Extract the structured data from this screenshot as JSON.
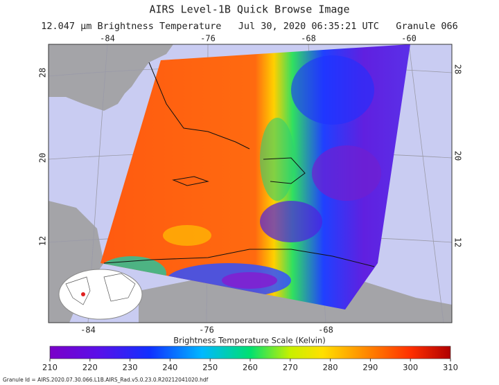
{
  "title": "AIRS Level-1B Quick Browse Image",
  "subtitle": "12.047 μm Brightness Temperature   Jul 30, 2020 06:35:21 UTC   Granule 066",
  "map": {
    "top_lon_labels": [
      -84,
      -76,
      -68,
      -60
    ],
    "bottom_lon_labels": [
      -84,
      -76,
      -68
    ],
    "left_lat_labels": [
      28,
      20,
      12
    ],
    "right_lat_labels": [
      28,
      20,
      12
    ]
  },
  "colorbar": {
    "title": "Brightness Temperature Scale (Kelvin)",
    "range": [
      210,
      310
    ],
    "ticks": [
      210,
      220,
      230,
      240,
      250,
      260,
      270,
      280,
      290,
      300,
      310
    ]
  },
  "footer": "Granule Id = AIRS.2020.07.30.066.L1B.AIRS_Rad.v5.0.23.0.R20212041020.hdf"
}
